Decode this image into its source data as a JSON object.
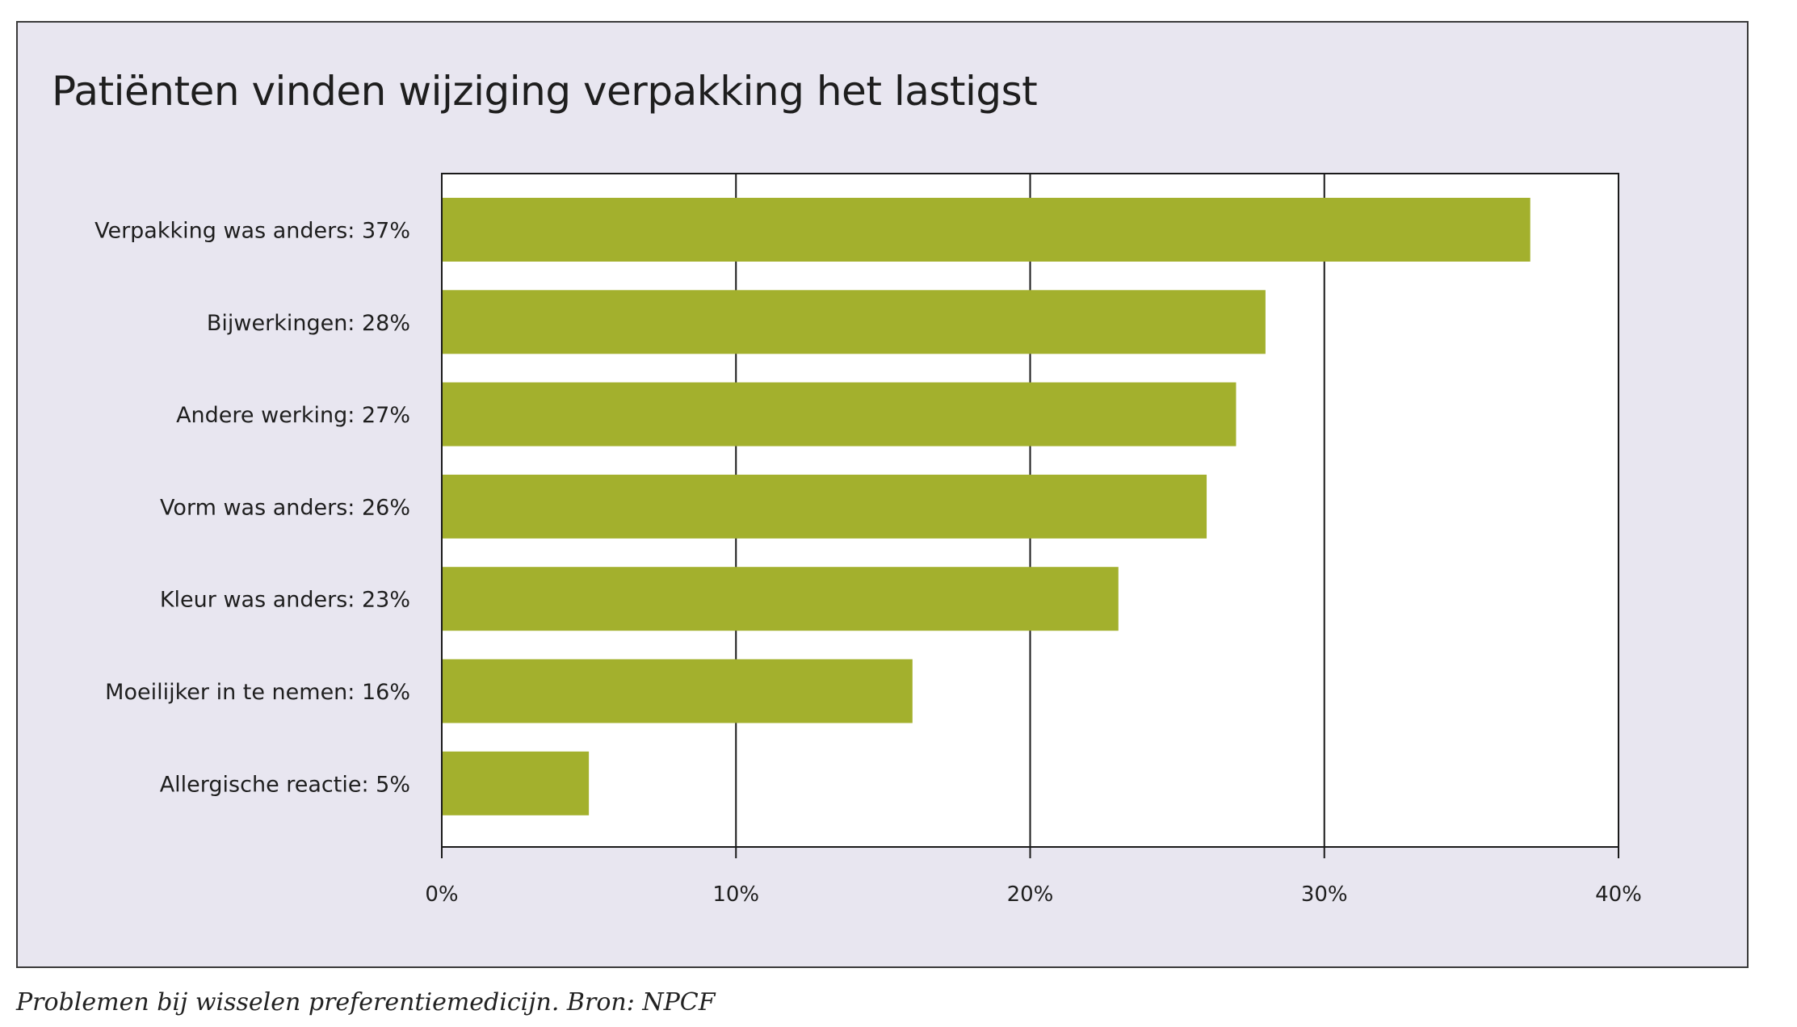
{
  "chart_data": {
    "type": "bar",
    "orientation": "horizontal",
    "title": "Patiënten vinden wijziging verpakking het lastigst",
    "categories": [
      "Verpakking was anders: 37%",
      "Bijwerkingen: 28%",
      "Andere werking: 27%",
      "Vorm was anders: 26%",
      "Kleur was anders: 23%",
      "Moeilijker in te nemen: 16%",
      "Allergische reactie: 5%"
    ],
    "values": [
      37,
      28,
      27,
      26,
      23,
      16,
      5
    ],
    "xlim": [
      0,
      40
    ],
    "xticks": [
      0,
      10,
      20,
      30,
      40
    ],
    "xtick_labels": [
      "0%",
      "10%",
      "20%",
      "30%",
      "40%"
    ],
    "xlabel": "",
    "ylabel": "",
    "grid": true,
    "legend": "none"
  },
  "caption": "Problemen bij wisselen preferentiemedicijn. Bron: NPCF",
  "colors": {
    "bar": "#a3b02d",
    "frame_background": "#e8e6f0",
    "plot_background": "#ffffff",
    "axis": "#1a1a1a",
    "text": "#1e1e1e"
  }
}
